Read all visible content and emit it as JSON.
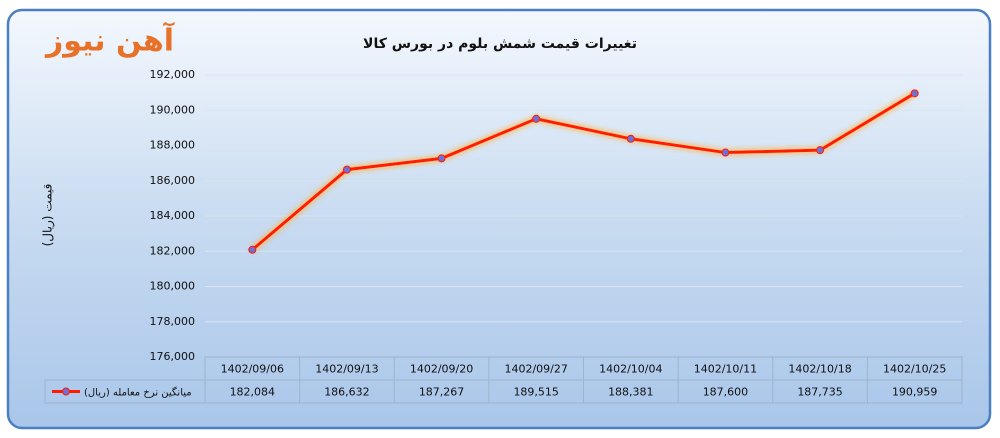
{
  "chart_data": {
    "type": "line",
    "title": "تغییرات قیمت شمش بلوم در بورس کالا",
    "logo": "آهن نیوز",
    "y_label": "قیمت (ریال)",
    "categories": [
      "1402/09/06",
      "1402/09/13",
      "1402/09/20",
      "1402/09/27",
      "1402/10/04",
      "1402/10/11",
      "1402/10/18",
      "1402/10/25"
    ],
    "series": [
      {
        "name": "میانگین نرخ معامله (ریال)",
        "color": "#ff1a00",
        "marker_color": "#6f6fd8",
        "values": [
          182084,
          186632,
          187267,
          189515,
          188381,
          187600,
          187735,
          190959
        ],
        "value_labels": [
          "182,084",
          "186,632",
          "187,267",
          "189,515",
          "188,381",
          "187,600",
          "187,735",
          "190,959"
        ]
      }
    ],
    "ylim": [
      176000,
      192000
    ],
    "yticks": [
      {
        "value": 176000,
        "label": "176,000"
      },
      {
        "value": 178000,
        "label": "178,000"
      },
      {
        "value": 180000,
        "label": "180,000"
      },
      {
        "value": 182000,
        "label": "182,000"
      },
      {
        "value": 184000,
        "label": "184,000"
      },
      {
        "value": 186000,
        "label": "186,000"
      },
      {
        "value": 188000,
        "label": "188,000"
      },
      {
        "value": 190000,
        "label": "190,000"
      },
      {
        "value": 192000,
        "label": "192,000"
      }
    ],
    "grid": true
  }
}
